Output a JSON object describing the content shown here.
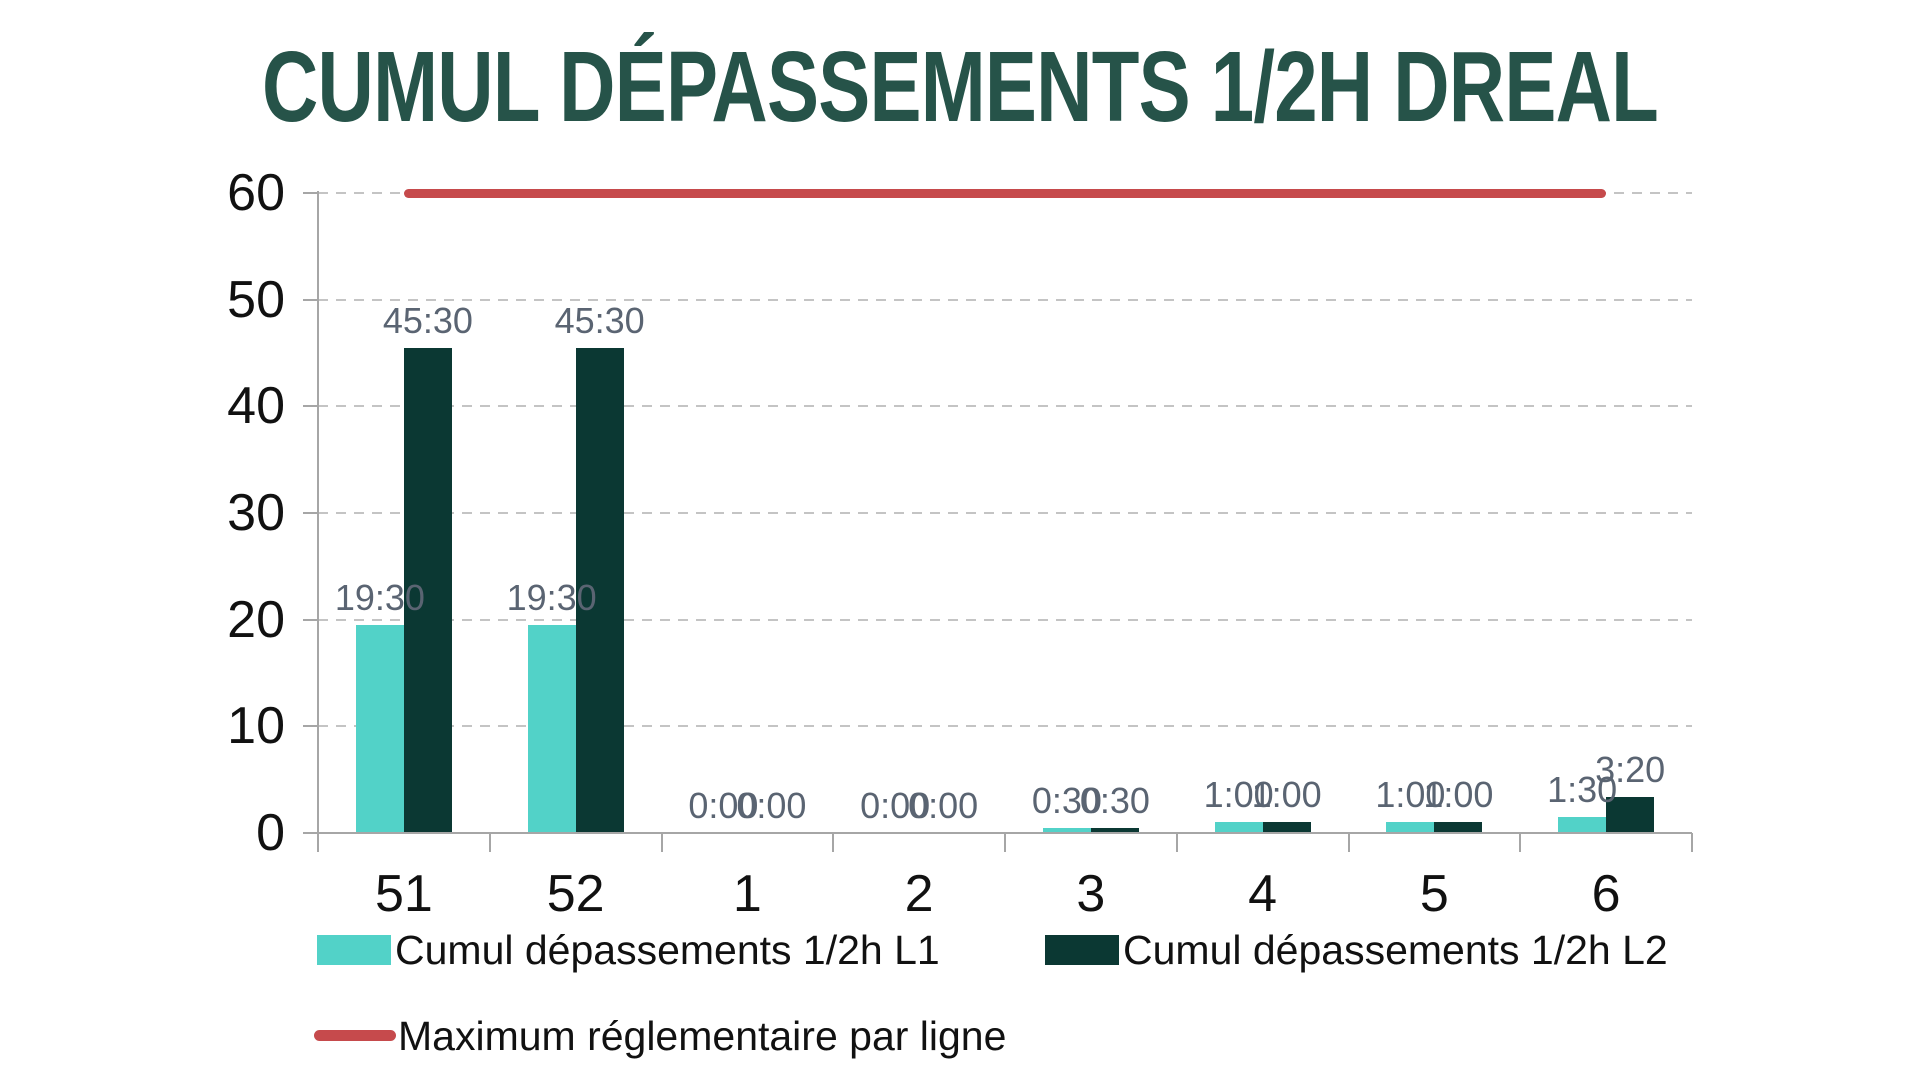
{
  "title": "CUMUL DÉPASSEMENTS 1/2H DREAL",
  "colors": {
    "title": "#265349",
    "series_l1": "#52D2C8",
    "series_l2": "#0B3833",
    "max_line": "#C64A4C",
    "axis_line": "#a6a6a6",
    "gridline": "#c4c4c4",
    "axis_text": "#111111",
    "data_label_text": "#5A6472"
  },
  "chart_data": {
    "type": "bar",
    "title": "CUMUL DÉPASSEMENTS 1/2H DREAL",
    "categories": [
      "51",
      "52",
      "1",
      "2",
      "3",
      "4",
      "5",
      "6"
    ],
    "series": [
      {
        "name": "Cumul dépassements 1/2h L1",
        "color": "#52D2C8",
        "values_hours": [
          19.5,
          19.5,
          0,
          0,
          0.5,
          1,
          1,
          1.5
        ],
        "labels": [
          "19:30",
          "19:30",
          "0:00",
          "0:00",
          "0:30",
          "1:00",
          "1:00",
          "1:30"
        ]
      },
      {
        "name": "Cumul dépassements 1/2h L2",
        "color": "#0B3833",
        "values_hours": [
          45.5,
          45.5,
          0,
          0,
          0.5,
          1,
          1,
          3.33
        ],
        "labels": [
          "45:30",
          "45:30",
          "0:00",
          "0:00",
          "0:30",
          "1:00",
          "1:00",
          "3:20"
        ]
      }
    ],
    "max_line": {
      "name": "Maximum réglementaire par ligne",
      "value": 60,
      "color": "#C64A4C"
    },
    "xlabel": "",
    "ylabel": "",
    "ylim": [
      0,
      60
    ],
    "yticks": [
      0,
      10,
      20,
      30,
      40,
      50,
      60
    ],
    "grid": true,
    "gridstyle": "dashed",
    "legend_position": "bottom"
  },
  "legend": {
    "l1_label": "Cumul dépassements 1/2h L1",
    "l2_label": "Cumul dépassements 1/2h L2",
    "max_label": "Maximum réglementaire par ligne"
  }
}
